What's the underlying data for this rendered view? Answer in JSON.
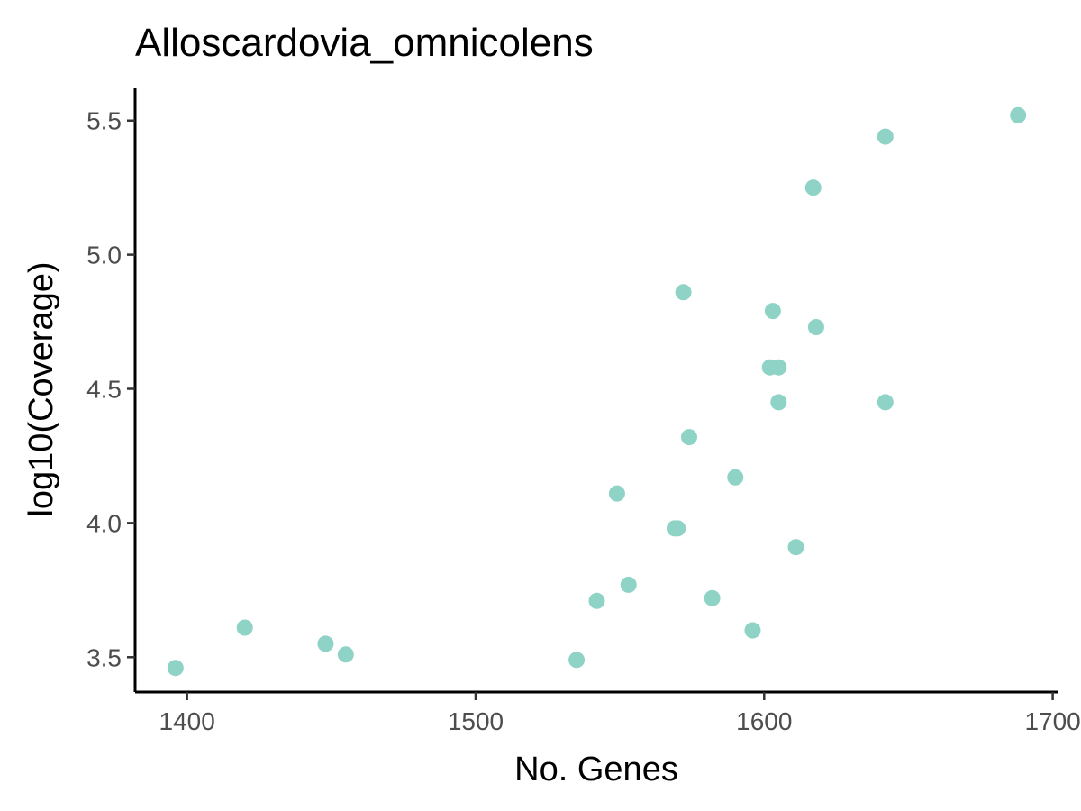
{
  "chart_data": {
    "type": "scatter",
    "title": "Alloscardovia_omnicolens",
    "xlabel": "No. Genes",
    "ylabel": "log10(Coverage)",
    "xlim": [
      1382,
      1702
    ],
    "ylim": [
      3.37,
      5.62
    ],
    "x_ticks": [
      1400,
      1500,
      1600,
      1700
    ],
    "y_ticks": [
      3.5,
      4.0,
      4.5,
      5.0,
      5.5
    ],
    "x_tick_labels": [
      "1400",
      "1500",
      "1600",
      "1700"
    ],
    "y_tick_labels": [
      "3.5",
      "4.0",
      "4.5",
      "5.0",
      "5.5"
    ],
    "grid": false,
    "legend": "none",
    "point_color": "#8fd3c7",
    "points": [
      {
        "x": 1396,
        "y": 3.46
      },
      {
        "x": 1420,
        "y": 3.61
      },
      {
        "x": 1448,
        "y": 3.55
      },
      {
        "x": 1455,
        "y": 3.51
      },
      {
        "x": 1535,
        "y": 3.49
      },
      {
        "x": 1542,
        "y": 3.71
      },
      {
        "x": 1549,
        "y": 4.11
      },
      {
        "x": 1553,
        "y": 3.77
      },
      {
        "x": 1569,
        "y": 3.98
      },
      {
        "x": 1570,
        "y": 3.98
      },
      {
        "x": 1572,
        "y": 4.86
      },
      {
        "x": 1574,
        "y": 4.32
      },
      {
        "x": 1582,
        "y": 3.72
      },
      {
        "x": 1590,
        "y": 4.17
      },
      {
        "x": 1596,
        "y": 3.6
      },
      {
        "x": 1602,
        "y": 4.58
      },
      {
        "x": 1603,
        "y": 4.79
      },
      {
        "x": 1605,
        "y": 4.58
      },
      {
        "x": 1605,
        "y": 4.45
      },
      {
        "x": 1611,
        "y": 3.91
      },
      {
        "x": 1617,
        "y": 5.25
      },
      {
        "x": 1618,
        "y": 4.73
      },
      {
        "x": 1642,
        "y": 5.44
      },
      {
        "x": 1642,
        "y": 4.45
      },
      {
        "x": 1688,
        "y": 5.52
      }
    ]
  }
}
